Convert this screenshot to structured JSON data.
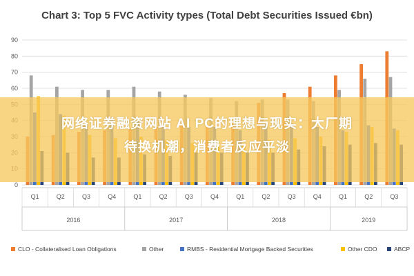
{
  "banner": {
    "line1": "网络证券融资网站 AI PC的理想与现实：大厂期",
    "line2": "待换机潮，消费者反应平淡"
  },
  "chart_data": {
    "type": "bar",
    "title": "Chart 3: Top 5 FVC Activity types (Total Debt Securities Issued €bn)",
    "xlabel": "",
    "ylabel": "",
    "ylim": [
      0,
      90
    ],
    "yticks": [
      0,
      10,
      20,
      30,
      40,
      50,
      60,
      70,
      80,
      90
    ],
    "grid": true,
    "legend_position": "bottom",
    "categories": [
      "Q1",
      "Q2",
      "Q3",
      "Q4",
      "Q1",
      "Q2",
      "Q3",
      "Q4",
      "Q1",
      "Q2",
      "Q3",
      "Q4",
      "Q1",
      "Q2",
      "Q3"
    ],
    "groups": [
      {
        "label": "2016",
        "start": 0,
        "count": 4
      },
      {
        "label": "2017",
        "start": 4,
        "count": 4
      },
      {
        "label": "2018",
        "start": 8,
        "count": 4
      },
      {
        "label": "2019",
        "start": 12,
        "count": 3
      }
    ],
    "series": [
      {
        "name": "CLO - Collateralised Loan Obligations",
        "color": "#ED7D31",
        "values": [
          30,
          31,
          33,
          34,
          35,
          36,
          37,
          37,
          38,
          51,
          57,
          61,
          68,
          75,
          83
        ]
      },
      {
        "name": "Other",
        "color": "#A5A5A5",
        "values": [
          68,
          61,
          59,
          59,
          61,
          58,
          56,
          54,
          52,
          53,
          53,
          52,
          59,
          66,
          67
        ]
      },
      {
        "name": "RMBS - Residential Mortgage Backed Securities",
        "color": "#4472C4",
        "values": [
          45,
          44,
          38,
          41,
          40,
          36,
          36,
          36,
          34,
          38,
          38,
          36,
          34,
          37,
          35
        ]
      },
      {
        "name": "Other CDO",
        "color": "#FFC000",
        "values": [
          55,
          43,
          31,
          29,
          30,
          28,
          26,
          25,
          25,
          28,
          29,
          30,
          33,
          36,
          34
        ]
      },
      {
        "name": "ABCP",
        "color": "#264478",
        "values": [
          21,
          20,
          17,
          17,
          19,
          18,
          20,
          20,
          20,
          20,
          22,
          24,
          25,
          26,
          25
        ]
      }
    ]
  }
}
